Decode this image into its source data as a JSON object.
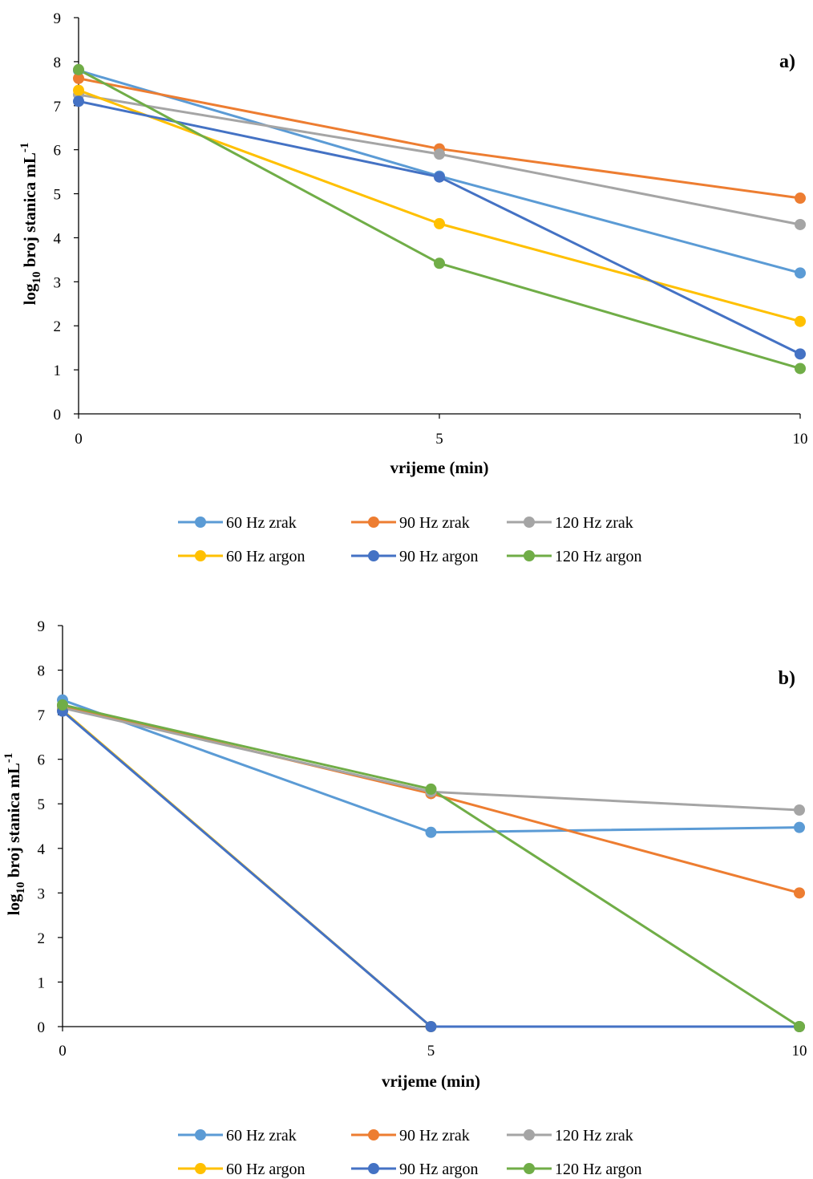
{
  "chart_data": [
    {
      "type": "line",
      "panel_label": "a)",
      "xlabel": "vrijeme (min)",
      "ylabel": "log10 broj stanica mL-1",
      "ylabel_parts": {
        "base": "log",
        "sub": "10",
        "middle": " broj stanica mL",
        "sup": "-1"
      },
      "x": [
        0,
        5,
        10
      ],
      "x_ticks": [
        "0",
        "5",
        "10"
      ],
      "xlim": [
        0,
        10
      ],
      "y_ticks": [
        "0",
        "1",
        "2",
        "3",
        "4",
        "5",
        "6",
        "7",
        "8",
        "9"
      ],
      "ylim": [
        0,
        9
      ],
      "grid": false,
      "legend_position": "bottom",
      "series": [
        {
          "name": "60 Hz zrak",
          "color": "#5B9BD5",
          "values": [
            7.8,
            5.4,
            3.2
          ]
        },
        {
          "name": "90 Hz zrak",
          "color": "#ED7D31",
          "values": [
            7.62,
            6.02,
            4.9
          ]
        },
        {
          "name": "120 Hz zrak",
          "color": "#A5A5A5",
          "values": [
            7.25,
            5.9,
            4.3
          ]
        },
        {
          "name": "60 Hz argon",
          "color": "#FFC000",
          "values": [
            7.35,
            4.32,
            2.1
          ]
        },
        {
          "name": "90 Hz argon",
          "color": "#4472C4",
          "values": [
            7.1,
            5.38,
            1.36
          ]
        },
        {
          "name": "120 Hz argon",
          "color": "#70AD47",
          "values": [
            7.82,
            3.42,
            1.03
          ]
        }
      ]
    },
    {
      "type": "line",
      "panel_label": "b)",
      "xlabel": "vrijeme (min)",
      "ylabel": "log10 broj stanica mL-1",
      "ylabel_parts": {
        "base": "log",
        "sub": "10",
        "middle": " broj stanica mL",
        "sup": "-1"
      },
      "x": [
        0,
        5,
        10
      ],
      "x_ticks": [
        "0",
        "5",
        "10"
      ],
      "xlim": [
        0,
        10
      ],
      "y_ticks": [
        "0",
        "1",
        "2",
        "3",
        "4",
        "5",
        "6",
        "7",
        "8",
        "9"
      ],
      "ylim": [
        0,
        9
      ],
      "grid": false,
      "legend_position": "bottom",
      "series": [
        {
          "name": "60 Hz zrak",
          "color": "#5B9BD5",
          "values": [
            7.33,
            4.36,
            4.47
          ]
        },
        {
          "name": "90 Hz zrak",
          "color": "#ED7D31",
          "values": [
            7.2,
            5.23,
            3.0
          ]
        },
        {
          "name": "120 Hz zrak",
          "color": "#A5A5A5",
          "values": [
            7.15,
            5.27,
            4.86
          ]
        },
        {
          "name": "60 Hz argon",
          "color": "#FFC000",
          "values": [
            7.1,
            0,
            0
          ]
        },
        {
          "name": "90 Hz argon",
          "color": "#4472C4",
          "values": [
            7.08,
            0,
            0
          ]
        },
        {
          "name": "120 Hz argon",
          "color": "#70AD47",
          "values": [
            7.22,
            5.33,
            0
          ]
        }
      ]
    }
  ]
}
